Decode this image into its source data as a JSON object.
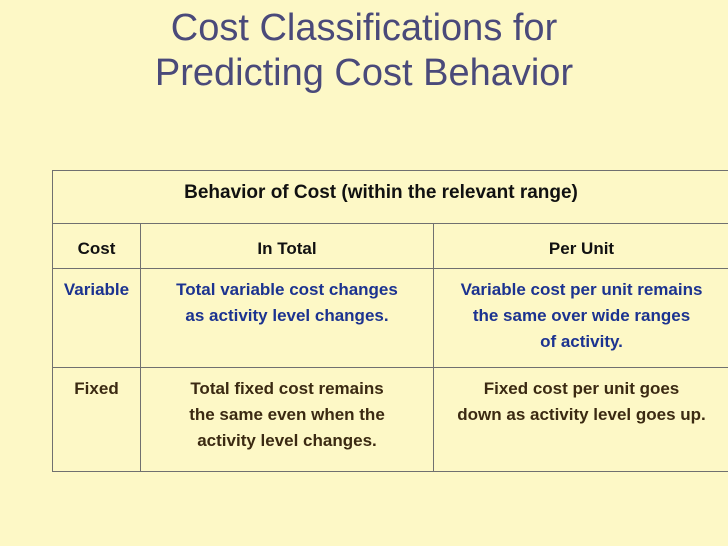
{
  "title": {
    "line1": "Cost Classifications for",
    "line2": "Predicting Cost Behavior"
  },
  "table": {
    "group_header": "Behavior of Cost (within the relevant range)",
    "columns": [
      "Cost",
      "In Total",
      "Per Unit"
    ],
    "rows": [
      {
        "cost": "Variable",
        "in_total": [
          "Total variable cost changes",
          "as activity level changes."
        ],
        "per_unit": [
          "Variable cost per unit remains",
          "the same over wide ranges",
          "of activity."
        ]
      },
      {
        "cost": "Fixed",
        "in_total": [
          "Total fixed cost remains",
          "the same even when the",
          "activity level changes."
        ],
        "per_unit": [
          "Fixed cost per unit goes",
          "down as activity level goes up."
        ]
      }
    ]
  },
  "colors": {
    "background": "#fdf8c6",
    "title": "#4a4a7a",
    "variable_text": "#1c3390",
    "fixed_text": "#3b2a12",
    "border": "#707070"
  }
}
